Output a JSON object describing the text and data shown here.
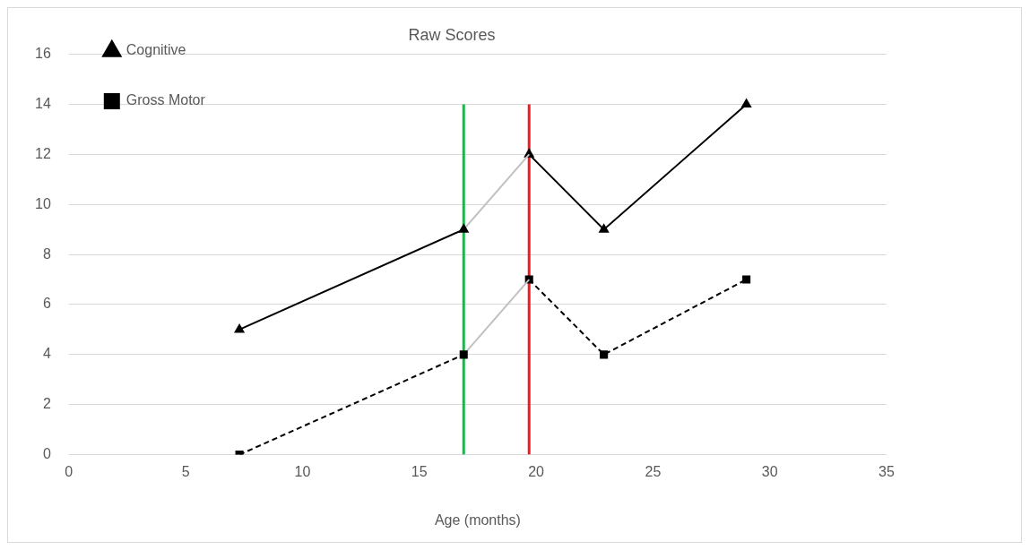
{
  "chart_data": {
    "type": "line",
    "title": "Raw Scores",
    "xlabel": "Age (months)",
    "xlim": [
      0,
      35
    ],
    "xticks": [
      0,
      5,
      10,
      15,
      20,
      25,
      30,
      35
    ],
    "ylim": [
      0,
      16
    ],
    "yticks": [
      0,
      2,
      4,
      6,
      8,
      10,
      12,
      14,
      16
    ],
    "grid": "y",
    "legend": "top left",
    "series": [
      {
        "name": "Cognitive",
        "color": "#000000",
        "marker": "triangle",
        "line_style": "solid",
        "x": [
          7.3,
          16.9
        ],
        "values": [
          5,
          9
        ]
      },
      {
        "color": "#c0c0c0",
        "marker": "none",
        "line_style": "solid",
        "x": [
          16.9,
          19.7
        ],
        "values": [
          9,
          12
        ]
      },
      {
        "color": "#000000",
        "marker": "triangle",
        "line_style": "solid",
        "x": [
          19.7,
          22.9,
          29.0
        ],
        "values": [
          12,
          9,
          14
        ]
      },
      {
        "name": "Gross Motor",
        "color": "#000000",
        "marker": "square",
        "line_style": "dashed",
        "x": [
          7.3,
          16.9
        ],
        "values": [
          0,
          4
        ]
      },
      {
        "color": "#c0c0c0",
        "marker": "none",
        "line_style": "solid",
        "x": [
          16.9,
          19.7
        ],
        "values": [
          4,
          7
        ]
      },
      {
        "color": "#000000",
        "marker": "square",
        "line_style": "dashed",
        "x": [
          19.7,
          22.9,
          29.0
        ],
        "values": [
          7,
          4,
          7
        ]
      },
      {
        "color": "#22b14c",
        "marker": "none",
        "line_style": "solid",
        "x": [
          16.9,
          16.9
        ],
        "values": [
          0,
          14
        ]
      },
      {
        "color": "#ed1c24",
        "marker": "none",
        "line_style": "solid",
        "x": [
          19.7,
          19.7
        ],
        "values": [
          0,
          14
        ]
      }
    ]
  }
}
